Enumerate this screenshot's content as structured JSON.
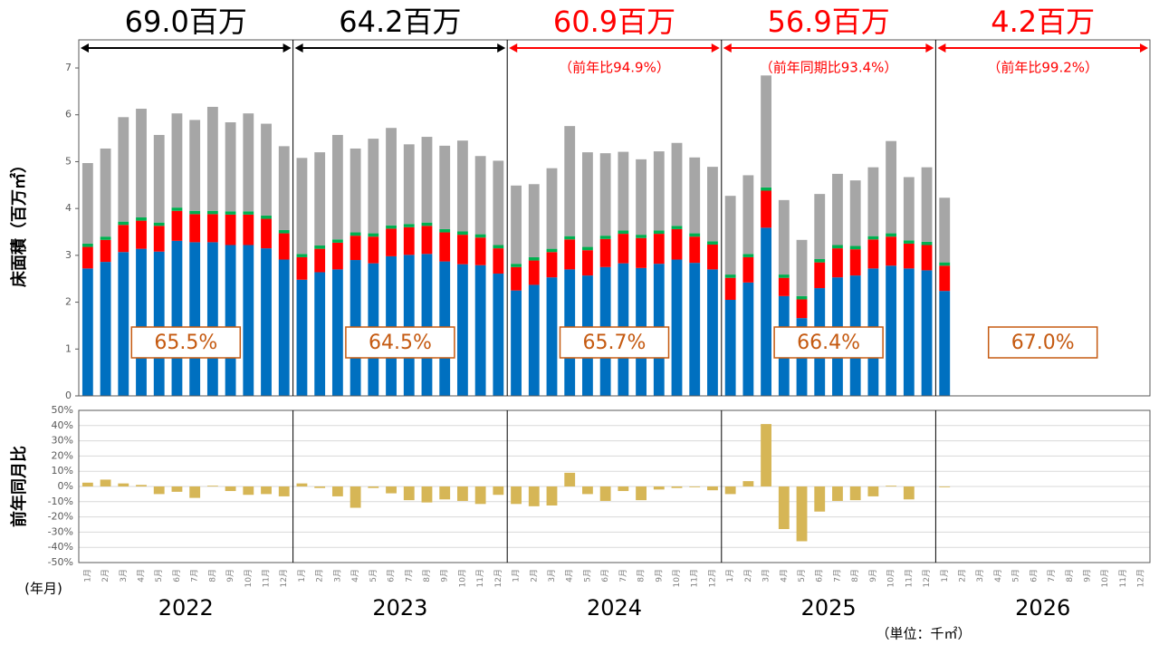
{
  "chart_data": [
    {
      "type": "stacked-bar",
      "y_label": "床面積（百万㎡）",
      "x_label": "(年月)",
      "unit_note": "（単位：千㎡）",
      "categories": [
        "1月",
        "2月",
        "3月",
        "4月",
        "5月",
        "6月",
        "7月",
        "8月",
        "9月",
        "10月",
        "11月",
        "12月",
        "1月",
        "2月",
        "3月",
        "4月",
        "5月",
        "6月",
        "7月",
        "8月",
        "9月",
        "10月",
        "11月",
        "12月",
        "1月",
        "2月",
        "3月",
        "4月",
        "5月",
        "6月",
        "7月",
        "8月",
        "9月",
        "10月",
        "11月",
        "12月",
        "1月",
        "2月",
        "3月",
        "4月",
        "5月",
        "6月",
        "7月",
        "8月",
        "9月",
        "10月",
        "11月",
        "12月",
        "1月",
        "2月",
        "3月",
        "4月",
        "5月",
        "6月",
        "7月",
        "8月",
        "9月",
        "10月",
        "11月",
        "12月"
      ],
      "ylim": [
        0,
        7.6
      ],
      "yticks": [
        0,
        1,
        2,
        3,
        4,
        5,
        6,
        7
      ],
      "year_groups": [
        {
          "year": "2022",
          "total": "69.0百万",
          "share": "65.5%",
          "color": "#000000"
        },
        {
          "year": "2023",
          "total": "64.2百万",
          "share": "64.5%",
          "color": "#000000"
        },
        {
          "year": "2024",
          "total": "60.9百万",
          "ratio": "（前年比94.9%）",
          "share": "65.7%",
          "color": "#ff0000"
        },
        {
          "year": "2025",
          "total": "56.9百万",
          "ratio": "（前年同期比93.4%）",
          "share": "66.4%",
          "color": "#ff0000"
        },
        {
          "year": "2026",
          "total": "4.2百万",
          "ratio": "（前年比99.2%）",
          "share": "67.0%",
          "color": "#ff0000"
        }
      ],
      "series": [
        {
          "color": "#0070c0",
          "values": [
            2.72,
            2.86,
            3.07,
            3.14,
            3.08,
            3.31,
            3.28,
            3.28,
            3.22,
            3.22,
            3.15,
            2.91,
            2.48,
            2.64,
            2.7,
            2.9,
            2.83,
            2.98,
            3.01,
            3.03,
            2.87,
            2.81,
            2.79,
            2.61,
            2.25,
            2.37,
            2.53,
            2.7,
            2.57,
            2.75,
            2.83,
            2.73,
            2.82,
            2.91,
            2.84,
            2.7,
            2.05,
            2.42,
            3.59,
            2.13,
            1.66,
            2.3,
            2.53,
            2.57,
            2.72,
            2.78,
            2.72,
            2.68,
            2.24,
            null,
            null,
            null,
            null,
            null,
            null,
            null,
            null,
            null,
            null,
            null
          ]
        },
        {
          "color": "#ff0000",
          "values": [
            0.46,
            0.47,
            0.58,
            0.6,
            0.55,
            0.64,
            0.6,
            0.6,
            0.65,
            0.65,
            0.63,
            0.56,
            0.48,
            0.5,
            0.57,
            0.52,
            0.57,
            0.59,
            0.59,
            0.6,
            0.62,
            0.63,
            0.59,
            0.54,
            0.5,
            0.52,
            0.54,
            0.64,
            0.54,
            0.6,
            0.63,
            0.64,
            0.64,
            0.65,
            0.56,
            0.53,
            0.47,
            0.54,
            0.79,
            0.39,
            0.4,
            0.55,
            0.62,
            0.56,
            0.62,
            0.62,
            0.53,
            0.54,
            0.54,
            null,
            null,
            null,
            null,
            null,
            null,
            null,
            null,
            null,
            null,
            null
          ]
        },
        {
          "color": "#00b050",
          "values": [
            0.07,
            0.07,
            0.07,
            0.07,
            0.07,
            0.07,
            0.07,
            0.07,
            0.07,
            0.07,
            0.07,
            0.07,
            0.07,
            0.07,
            0.07,
            0.07,
            0.07,
            0.07,
            0.07,
            0.07,
            0.07,
            0.07,
            0.07,
            0.07,
            0.07,
            0.07,
            0.07,
            0.07,
            0.07,
            0.07,
            0.07,
            0.07,
            0.07,
            0.07,
            0.07,
            0.07,
            0.07,
            0.07,
            0.07,
            0.07,
            0.07,
            0.07,
            0.07,
            0.07,
            0.07,
            0.07,
            0.07,
            0.07,
            0.07,
            null,
            null,
            null,
            null,
            null,
            null,
            null,
            null,
            null,
            null,
            null
          ]
        },
        {
          "color": "#a6a6a6",
          "values": [
            1.72,
            1.88,
            2.23,
            2.32,
            1.87,
            2.01,
            1.94,
            2.22,
            1.9,
            2.09,
            1.96,
            1.79,
            2.05,
            1.99,
            2.23,
            1.79,
            2.02,
            2.08,
            1.7,
            1.83,
            1.78,
            1.94,
            1.67,
            1.8,
            1.67,
            1.56,
            1.72,
            2.35,
            2.02,
            1.76,
            1.68,
            1.61,
            1.69,
            1.77,
            1.62,
            1.59,
            1.68,
            1.68,
            2.39,
            1.59,
            1.2,
            1.39,
            1.52,
            1.4,
            1.47,
            1.97,
            1.35,
            1.59,
            1.38,
            null,
            null,
            null,
            null,
            null,
            null,
            null,
            null,
            null,
            null,
            null
          ]
        }
      ]
    },
    {
      "type": "bar",
      "y_label": "前年同月比",
      "color": "#d6b656",
      "grid": true,
      "ylim": [
        -50,
        50
      ],
      "yticks": [
        {
          "value": -50,
          "label": "-50%"
        },
        {
          "value": -40,
          "label": "-40%"
        },
        {
          "value": -30,
          "label": "-30%"
        },
        {
          "value": -20,
          "label": "-20%"
        },
        {
          "value": -10,
          "label": "-10%"
        },
        {
          "value": 0,
          "label": "0%"
        },
        {
          "value": 10,
          "label": "10%"
        },
        {
          "value": 20,
          "label": "20%"
        },
        {
          "value": 30,
          "label": "30%"
        },
        {
          "value": 40,
          "label": "40%"
        },
        {
          "value": 50,
          "label": "50%"
        }
      ],
      "values": [
        2.5,
        4.5,
        2,
        1,
        -5,
        -3.5,
        -7.5,
        0.5,
        -3,
        -5.5,
        -5,
        -6.5,
        2,
        -1,
        -6.5,
        -14,
        -1,
        -4.5,
        -9,
        -10.5,
        -8.5,
        -9.5,
        -11.5,
        -5.5,
        -11.5,
        -13,
        -12.5,
        9,
        -5,
        -9.5,
        -3,
        -9,
        -2,
        -1,
        -0.5,
        -2.5,
        -5,
        3.5,
        41,
        -28,
        -36,
        -16.5,
        -9.5,
        -9,
        -6.5,
        0.5,
        -8.5,
        0,
        -0.5,
        null,
        null,
        null,
        null,
        null,
        null,
        null,
        null,
        null,
        null,
        null
      ]
    }
  ]
}
